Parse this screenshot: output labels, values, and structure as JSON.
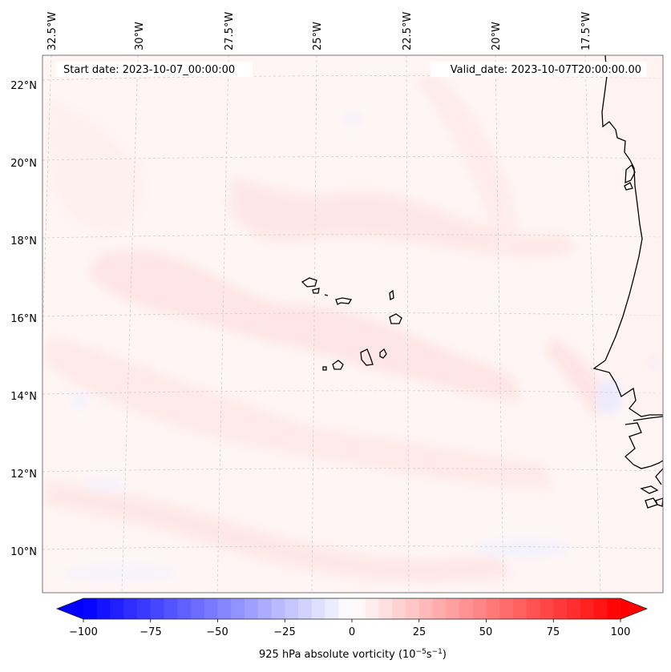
{
  "header": {
    "start_label": "Start date: 2023-10-07_00:00:00",
    "valid_label": "Valid_date: 2023-10-07T20:00:00.00"
  },
  "map": {
    "longitude_labels": [
      "32.5°W",
      "30°W",
      "27.5°W",
      "25°W",
      "22.5°W",
      "20°W",
      "17.5°W"
    ],
    "latitude_labels": [
      "22°N",
      "20°N",
      "18°N",
      "16°N",
      "14°N",
      "12°N",
      "10°N"
    ],
    "field_colors": {
      "light_red": "#ffe8e8",
      "pale_red": "#fff3f3",
      "light_blue": "#eef0ff",
      "coast": "#000000",
      "grid": "#c8c8c8"
    }
  },
  "colorbar": {
    "tick_labels": [
      "−100",
      "−75",
      "−50",
      "−25",
      "0",
      "25",
      "50",
      "75",
      "100"
    ],
    "label_main": "925 hPa absolute vorticity (10",
    "label_exp1": "−5",
    "label_mid": "s",
    "label_exp2": "−1",
    "label_end": ")",
    "vmin": -100,
    "vmax": 100,
    "color_low": "#0000ff",
    "color_mid": "#ffffff",
    "color_high": "#ff0000"
  }
}
